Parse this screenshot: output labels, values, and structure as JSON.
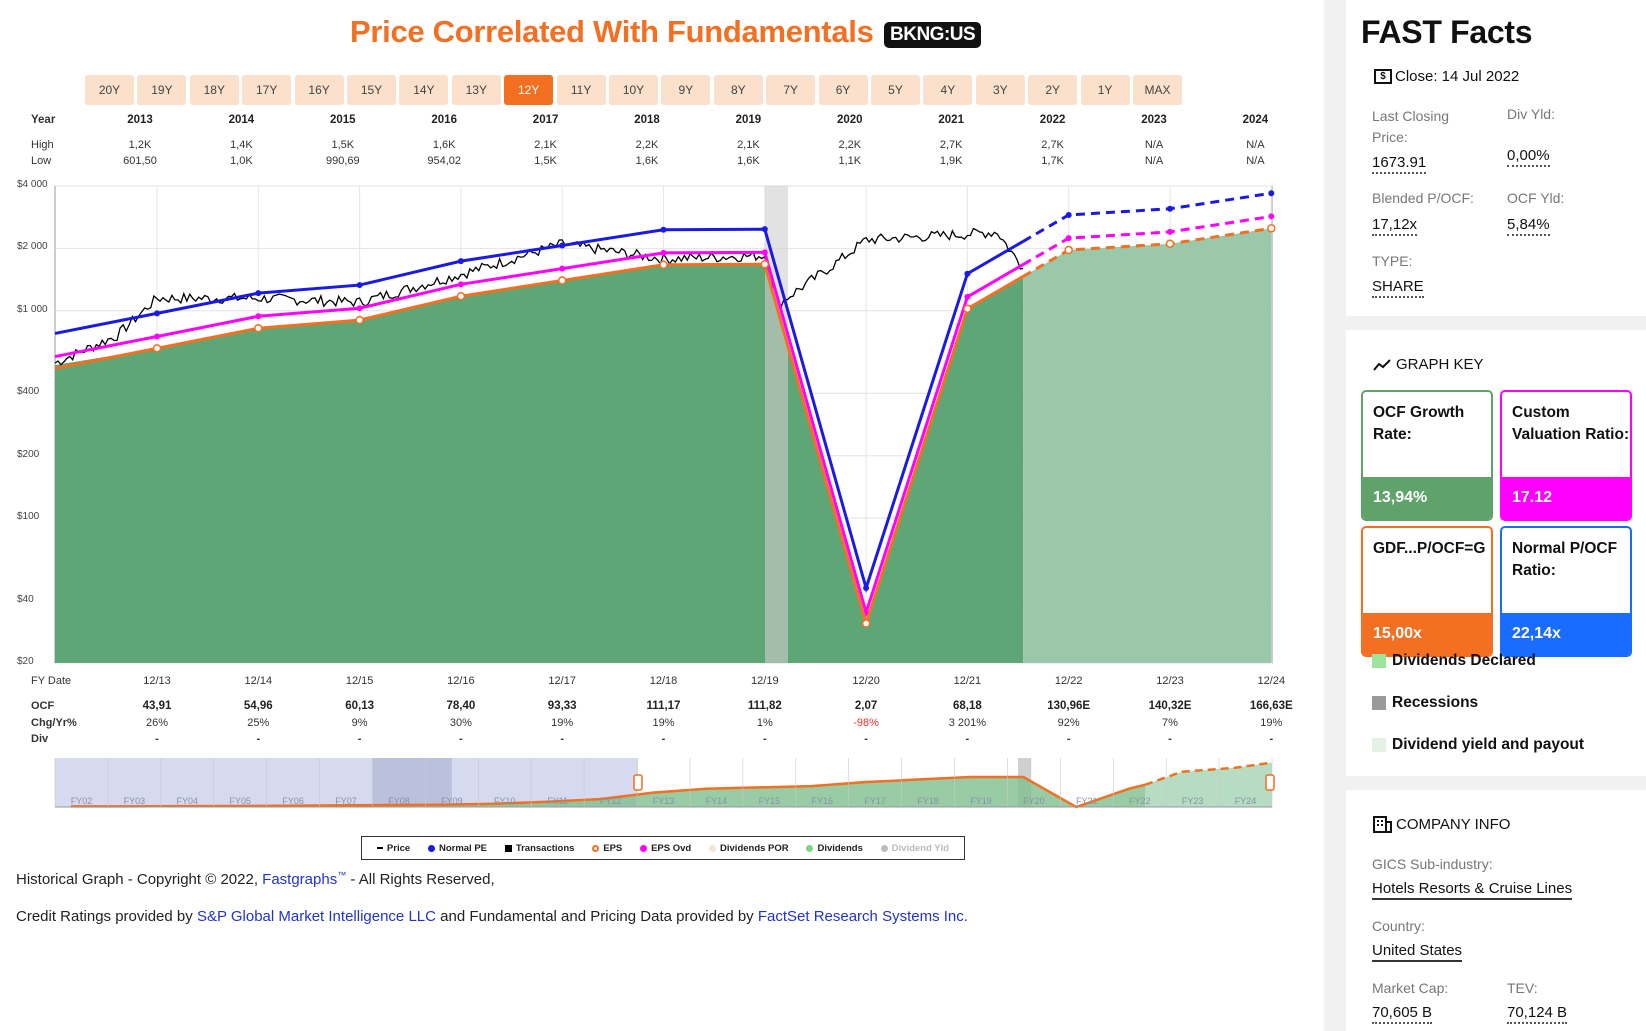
{
  "header": {
    "title": "Price Correlated With Fundamentals",
    "ticker": "BKNG:US"
  },
  "periods": [
    "20Y",
    "19Y",
    "18Y",
    "17Y",
    "16Y",
    "15Y",
    "14Y",
    "13Y",
    "12Y",
    "11Y",
    "10Y",
    "9Y",
    "8Y",
    "7Y",
    "6Y",
    "5Y",
    "4Y",
    "3Y",
    "2Y",
    "1Y",
    "MAX"
  ],
  "active_period": "12Y",
  "table": {
    "year_label": "Year",
    "high_label": "High",
    "low_label": "Low",
    "years": [
      "2013",
      "2014",
      "2015",
      "2016",
      "2017",
      "2018",
      "2019",
      "2020",
      "2021",
      "2022",
      "2023",
      "2024"
    ],
    "high": [
      "1,2K",
      "1,4K",
      "1,5K",
      "1,6K",
      "2,1K",
      "2,2K",
      "2,1K",
      "2,2K",
      "2,7K",
      "2,7K",
      "N/A",
      "N/A"
    ],
    "low": [
      "601,50",
      "1,0K",
      "990,69",
      "954,02",
      "1,5K",
      "1,6K",
      "1,6K",
      "1,1K",
      "1,9K",
      "1,7K",
      "N/A",
      "N/A"
    ]
  },
  "bottom_table": {
    "fy_label": "FY Date",
    "ocf_label": "OCF",
    "chg_label": "Chg/Yr%",
    "div_label": "Div",
    "fy_dates": [
      "12/13",
      "12/14",
      "12/15",
      "12/16",
      "12/17",
      "12/18",
      "12/19",
      "12/20",
      "12/21",
      "12/22",
      "12/23",
      "12/24"
    ],
    "ocf": [
      "43,91",
      "54,96",
      "60,13",
      "78,40",
      "93,33",
      "111,17",
      "111,82",
      "2,07",
      "68,18",
      "130,96E",
      "140,32E",
      "166,63E"
    ],
    "chg": [
      "26%",
      "25%",
      "9%",
      "30%",
      "19%",
      "19%",
      "1%",
      "-98%",
      "3 201%",
      "92%",
      "7%",
      "19%"
    ],
    "div": [
      "-",
      "-",
      "-",
      "-",
      "-",
      "-",
      "-",
      "-",
      "-",
      "-",
      "-",
      "-"
    ]
  },
  "chart_data": {
    "type": "line",
    "y_scale": "log",
    "y_ticks": [
      "$4 000",
      "$2 000",
      "$1 000",
      "$400",
      "$200",
      "$100",
      "$40",
      "$20"
    ],
    "x": [
      "12/13",
      "12/14",
      "12/15",
      "12/16",
      "12/17",
      "12/18",
      "12/19",
      "12/20",
      "12/21",
      "12/22",
      "12/23",
      "12/24"
    ],
    "series": [
      {
        "name": "Normal PE",
        "color": "#1a1ae6",
        "values": [
          972,
          1217,
          1331,
          1736,
          2066,
          2461,
          2476,
          46,
          1510,
          2900,
          3107,
          3690
        ]
      },
      {
        "name": "EPS Ovd",
        "color": "#ff00ff",
        "values": [
          752,
          941,
          1029,
          1342,
          1598,
          1903,
          1914,
          35,
          1167,
          2242,
          2402,
          2853
        ]
      },
      {
        "name": "EPS",
        "color": "#f36f21",
        "values": [
          659,
          824,
          902,
          1176,
          1400,
          1668,
          1677,
          31,
          1023,
          1964,
          2105,
          2499
        ]
      }
    ],
    "price": {
      "name": "Price",
      "color": "#000000"
    },
    "recessions": [
      "2020"
    ],
    "estimate_from": "12/22"
  },
  "legend": [
    {
      "label": "Price",
      "color": "#000000",
      "shape": "dash"
    },
    {
      "label": "Normal PE",
      "color": "#1a1ae6",
      "shape": "dot"
    },
    {
      "label": "Transactions",
      "color": "#000000",
      "shape": "square"
    },
    {
      "label": "EPS",
      "color": "#f36f21",
      "shape": "ring"
    },
    {
      "label": "EPS Ovd",
      "color": "#ff00ff",
      "shape": "dot"
    },
    {
      "label": "Dividends POR",
      "color": "#f1e6d8",
      "shape": "dot"
    },
    {
      "label": "Dividends",
      "color": "#7bd67b",
      "shape": "dot"
    },
    {
      "label": "Dividend Yld",
      "color": "#bbbbbb",
      "shape": "dot"
    }
  ],
  "overview_labels": [
    "FY02",
    "FY03",
    "FY04",
    "FY05",
    "FY06",
    "FY07",
    "FY08",
    "FY09",
    "FY10",
    "FY11",
    "FY12",
    "FY13",
    "FY14",
    "FY15",
    "FY16",
    "FY17",
    "FY18",
    "FY19",
    "FY20",
    "FY21",
    "FY22",
    "FY23",
    "FY24"
  ],
  "footer": {
    "line1_prefix": "Historical Graph - Copyright © 2022,",
    "line1_link": "Fastgraphs",
    "line1_tm": "™",
    "line1_suffix": "- All Rights Reserved,",
    "line2_a": "Credit Ratings provided by",
    "line2_link1": "S&P Global Market Intelligence LLC",
    "line2_b": "and Fundamental and Pricing Data provided by",
    "line2_link2": "FactSet Research Systems Inc."
  },
  "fast_facts": {
    "title": "FAST Facts",
    "close": "Close: 14 Jul 2022",
    "last_closing_label": "Last Closing Price:",
    "last_closing_value": "1673.91",
    "div_yld_label": "Div Yld:",
    "div_yld_value": "0,00%",
    "blended_label": "Blended P/OCF:",
    "blended_value": "17,12x",
    "ocf_yld_label": "OCF Yld:",
    "ocf_yld_value": "5,84%",
    "type_label": "TYPE:",
    "type_value": "SHARE"
  },
  "graph_key": {
    "title": "GRAPH KEY",
    "boxes": [
      {
        "label": "OCF Growth Rate:",
        "value": "13,94%",
        "color": "#5fa36b"
      },
      {
        "label": "Custom Valuation Ratio:",
        "value": "17.12",
        "color": "#ff00ff"
      },
      {
        "label": "GDF...P/OCF=G",
        "value": "15,00x",
        "color": "#f36f21"
      },
      {
        "label": "Normal P/OCF Ratio:",
        "value": "22,14x",
        "color": "#1a6cff"
      }
    ],
    "rows": [
      {
        "label": "Dividends Declared",
        "color": "#9de29d"
      },
      {
        "label": "Recessions",
        "color": "#9a9a9a"
      },
      {
        "label": "Dividend yield and payout",
        "color": "#e4f1e4"
      }
    ]
  },
  "company_info": {
    "title": "COMPANY INFO",
    "gics_label": "GICS Sub-industry:",
    "gics_value": "Hotels Resorts & Cruise Lines",
    "country_label": "Country:",
    "country_value": "United States",
    "mcap_label": "Market Cap:",
    "mcap_value": "70,605 B",
    "tev_label": "TEV:",
    "tev_value": "70,124 B"
  }
}
